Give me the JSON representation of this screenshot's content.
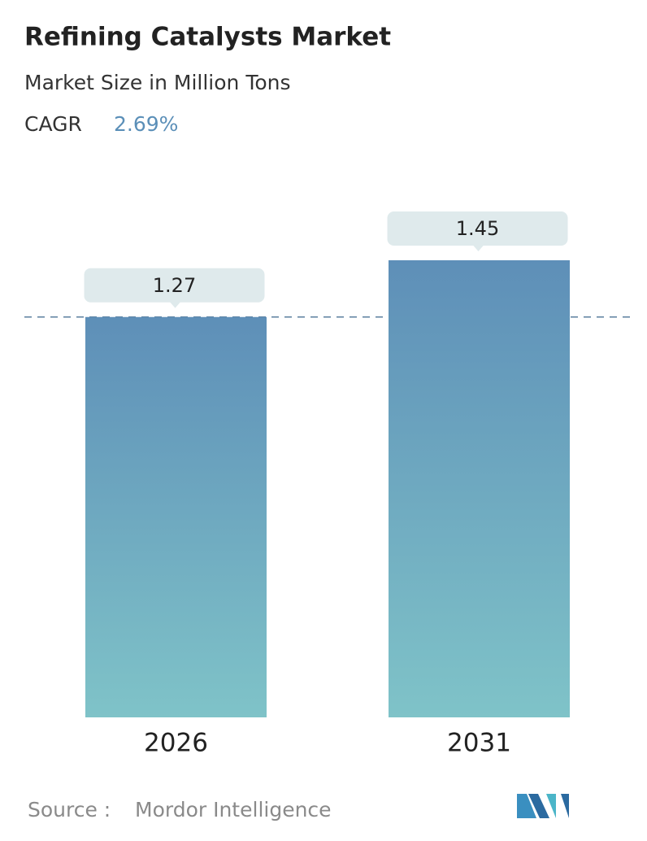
{
  "chart_data": {
    "type": "bar",
    "title": "Refining Catalysts Market",
    "subtitle": "Market Size in Million Tons",
    "cagr": {
      "label": "CAGR",
      "value": "2.69%"
    },
    "categories": [
      "2026",
      "2031"
    ],
    "values": [
      1.27,
      1.45
    ],
    "color_top": "#5e8fb8",
    "color_bottom": "#7fc3c8",
    "source": {
      "label": "Source :",
      "name": "Mordor Intelligence"
    }
  }
}
